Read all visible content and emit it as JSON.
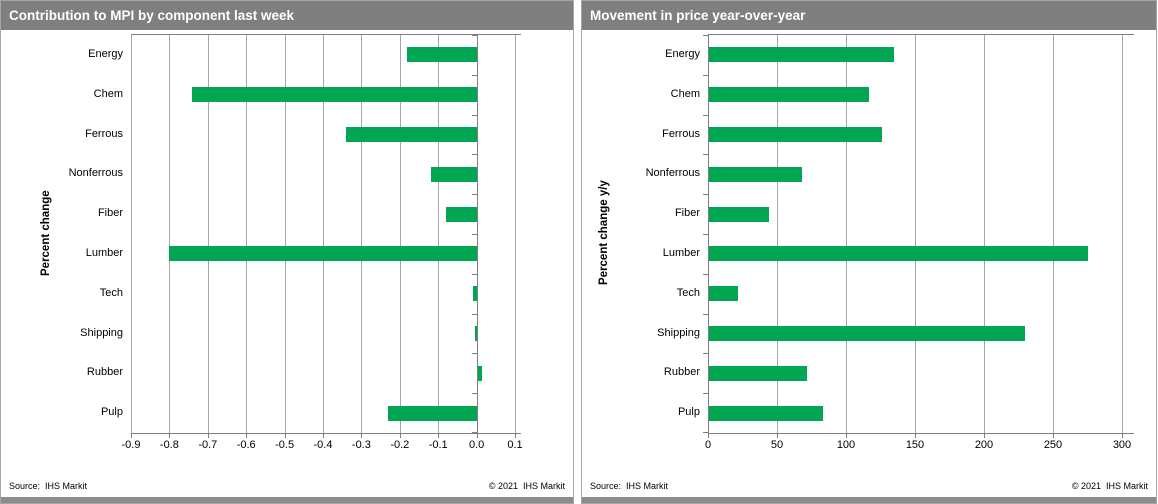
{
  "panels": [
    {
      "title": "Contribution to MPI by component last week",
      "y_axis_title": "Percent change",
      "source": "Source:  IHS Markit",
      "copyright": "© 2021  IHS Markit",
      "chart_index": 0
    },
    {
      "title": "Movement in price year-over-year",
      "y_axis_title": "Percent change y/y",
      "source": "Source:  IHS Markit",
      "copyright": "© 2021  IHS Markit",
      "chart_index": 1
    }
  ],
  "colors": {
    "bar_green": "#00a651",
    "titlebar_gray": "#7f7f7f",
    "gridline_gray": "#a6a6a6"
  },
  "chart_data": [
    {
      "type": "bar",
      "orientation": "horizontal",
      "title": "Contribution to MPI by component last week",
      "ylabel": "Percent change",
      "xlabel": "",
      "categories": [
        "Energy",
        "Chem",
        "Ferrous",
        "Nonferrous",
        "Fiber",
        "Lumber",
        "Tech",
        "Shipping",
        "Rubber",
        "Pulp"
      ],
      "values": [
        -0.18,
        -0.74,
        -0.34,
        -0.12,
        -0.08,
        -0.8,
        -0.01,
        -0.005,
        0.015,
        -0.23
      ],
      "xlim": [
        -0.9,
        0.1
      ],
      "xticks": [
        -0.9,
        -0.8,
        -0.7,
        -0.6,
        -0.5,
        -0.4,
        -0.3,
        -0.2,
        -0.1,
        0.0,
        0.1
      ],
      "xtick_labels": [
        "-0.9",
        "-0.8",
        "-0.7",
        "-0.6",
        "-0.5",
        "-0.4",
        "-0.3",
        "-0.2",
        "-0.1",
        "0.0",
        "0.1"
      ],
      "grid": true,
      "legend": false,
      "bar_color": "#00a651"
    },
    {
      "type": "bar",
      "orientation": "horizontal",
      "title": "Movement in price year-over-year",
      "ylabel": "Percent change y/y",
      "xlabel": "",
      "categories": [
        "Energy",
        "Chem",
        "Ferrous",
        "Nonferrous",
        "Fiber",
        "Lumber",
        "Tech",
        "Shipping",
        "Rubber",
        "Pulp"
      ],
      "values": [
        135,
        117,
        126,
        68,
        44,
        275,
        22,
        230,
        72,
        83
      ],
      "xlim": [
        0,
        300
      ],
      "xticks": [
        0,
        50,
        100,
        150,
        200,
        250,
        300
      ],
      "xtick_labels": [
        "0",
        "50",
        "100",
        "150",
        "200",
        "250",
        "300"
      ],
      "grid": true,
      "legend": false,
      "bar_color": "#00a651"
    }
  ]
}
